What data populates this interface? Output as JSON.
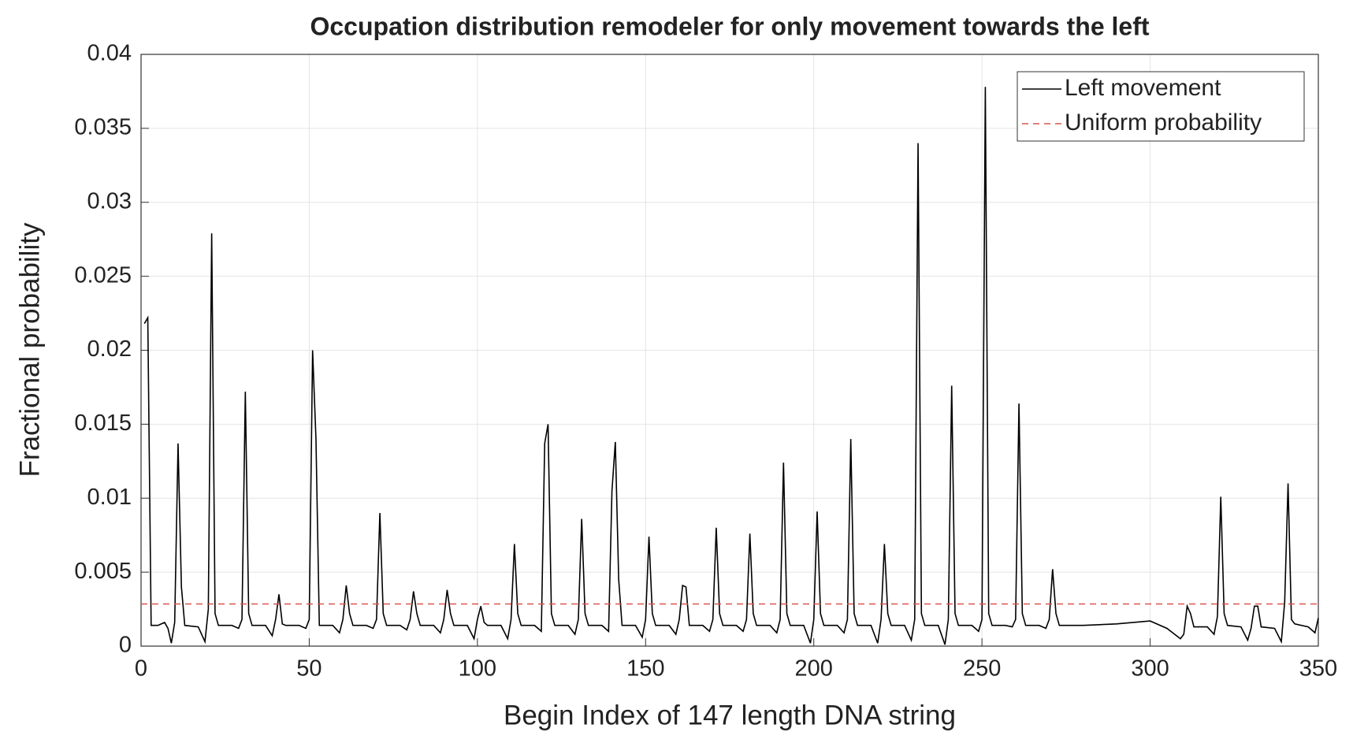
{
  "chart_data": {
    "type": "line",
    "title": "Occupation distribution remodeler for only movement towards the left",
    "x_label": "Begin Index of 147 length DNA string",
    "y_label": "Fractional probability",
    "xlim": [
      0,
      350
    ],
    "xticks": [
      0,
      50,
      100,
      150,
      200,
      250,
      300,
      350
    ],
    "ylim": [
      0,
      0.04
    ],
    "yticks": [
      0,
      0.005,
      0.01,
      0.015,
      0.02,
      0.025,
      0.03,
      0.035,
      0.04
    ],
    "grid": true,
    "legend": "upper right",
    "series": [
      {
        "name": "Left movement",
        "color": "#000000",
        "dash": false,
        "x": [
          1,
          2,
          3,
          5,
          7,
          8,
          9,
          10,
          11,
          12,
          13,
          17,
          19,
          20,
          21,
          22,
          23,
          27,
          29,
          30,
          31,
          32,
          33,
          37,
          39,
          40,
          41,
          42,
          43,
          47,
          49,
          50,
          51,
          52,
          53,
          57,
          59,
          60,
          61,
          62,
          63,
          67,
          69,
          70,
          71,
          72,
          73,
          77,
          79,
          80,
          81,
          82,
          83,
          87,
          89,
          90,
          91,
          92,
          93,
          97,
          99,
          100,
          101,
          102,
          103,
          107,
          109,
          110,
          111,
          112,
          113,
          117,
          119,
          120,
          121,
          122,
          123,
          127,
          129,
          130,
          131,
          132,
          133,
          137,
          139,
          140,
          141,
          142,
          143,
          147,
          149,
          150,
          151,
          152,
          153,
          157,
          159,
          160,
          161,
          162,
          163,
          167,
          169,
          170,
          171,
          172,
          173,
          177,
          179,
          180,
          181,
          182,
          183,
          187,
          189,
          190,
          191,
          192,
          193,
          197,
          199,
          200,
          201,
          202,
          203,
          207,
          209,
          210,
          211,
          212,
          213,
          217,
          219,
          220,
          221,
          222,
          223,
          227,
          229,
          230,
          231,
          232,
          233,
          237,
          239,
          240,
          241,
          242,
          243,
          247,
          249,
          250,
          251,
          252,
          253,
          257,
          259,
          260,
          261,
          262,
          263,
          267,
          269,
          270,
          271,
          272,
          273,
          280,
          290,
          300,
          305,
          309,
          310,
          311,
          312,
          313,
          317,
          319,
          320,
          321,
          322,
          323,
          327,
          329,
          330,
          331,
          332,
          333,
          337,
          339,
          340,
          341,
          342,
          343,
          347,
          349,
          350
        ],
        "values": [
          0.0218,
          0.0222,
          0.0014,
          0.0014,
          0.0016,
          0.0012,
          0.0002,
          0.0016,
          0.0137,
          0.004,
          0.0014,
          0.0013,
          0.0003,
          0.0025,
          0.0279,
          0.0022,
          0.0014,
          0.0014,
          0.0012,
          0.0018,
          0.0172,
          0.0022,
          0.0014,
          0.0014,
          0.0007,
          0.0018,
          0.0035,
          0.0015,
          0.0014,
          0.0014,
          0.0012,
          0.0018,
          0.02,
          0.014,
          0.0014,
          0.0014,
          0.0009,
          0.0018,
          0.0041,
          0.0022,
          0.0014,
          0.0014,
          0.0012,
          0.0018,
          0.009,
          0.0022,
          0.0014,
          0.0014,
          0.0011,
          0.0018,
          0.0037,
          0.0022,
          0.0014,
          0.0014,
          0.0009,
          0.0018,
          0.0038,
          0.0022,
          0.0014,
          0.0014,
          0.0005,
          0.0018,
          0.0027,
          0.0016,
          0.0014,
          0.0014,
          0.0005,
          0.0018,
          0.0069,
          0.0022,
          0.0014,
          0.0014,
          0.001,
          0.0137,
          0.015,
          0.0022,
          0.0014,
          0.0014,
          0.0008,
          0.0018,
          0.0086,
          0.0022,
          0.0014,
          0.0014,
          0.001,
          0.0105,
          0.0138,
          0.0045,
          0.0014,
          0.0014,
          0.0006,
          0.0018,
          0.0074,
          0.0022,
          0.0014,
          0.0014,
          0.0008,
          0.0018,
          0.0041,
          0.004,
          0.0014,
          0.0014,
          0.001,
          0.0018,
          0.008,
          0.0022,
          0.0014,
          0.0014,
          0.001,
          0.0018,
          0.0076,
          0.0022,
          0.0014,
          0.0014,
          0.0009,
          0.0018,
          0.0124,
          0.0022,
          0.0014,
          0.0014,
          0.0002,
          0.0018,
          0.0091,
          0.0022,
          0.0014,
          0.0014,
          0.0009,
          0.0018,
          0.014,
          0.0022,
          0.0014,
          0.0014,
          0.0002,
          0.0018,
          0.0069,
          0.0022,
          0.0014,
          0.0014,
          0.0004,
          0.0018,
          0.034,
          0.0022,
          0.0014,
          0.0014,
          0.0001,
          0.0018,
          0.0176,
          0.0022,
          0.0014,
          0.0014,
          0.001,
          0.0018,
          0.0378,
          0.0022,
          0.0014,
          0.0014,
          0.0013,
          0.0018,
          0.0164,
          0.0022,
          0.0014,
          0.0014,
          0.0012,
          0.0018,
          0.0052,
          0.0022,
          0.0014,
          0.0014,
          0.0015,
          0.0017,
          0.0012,
          0.0005,
          0.0008,
          0.0027,
          0.0022,
          0.0013,
          0.0013,
          0.0008,
          0.002,
          0.0101,
          0.0022,
          0.0014,
          0.0013,
          0.0004,
          0.0012,
          0.0027,
          0.0027,
          0.0013,
          0.0012,
          0.0003,
          0.003,
          0.011,
          0.0018,
          0.0015,
          0.0013,
          0.0009,
          0.0019
        ]
      },
      {
        "name": "Uniform probability",
        "color": "#d9534f",
        "dash": true,
        "x": [
          0,
          350
        ],
        "values": [
          0.00285,
          0.00285
        ]
      }
    ]
  }
}
